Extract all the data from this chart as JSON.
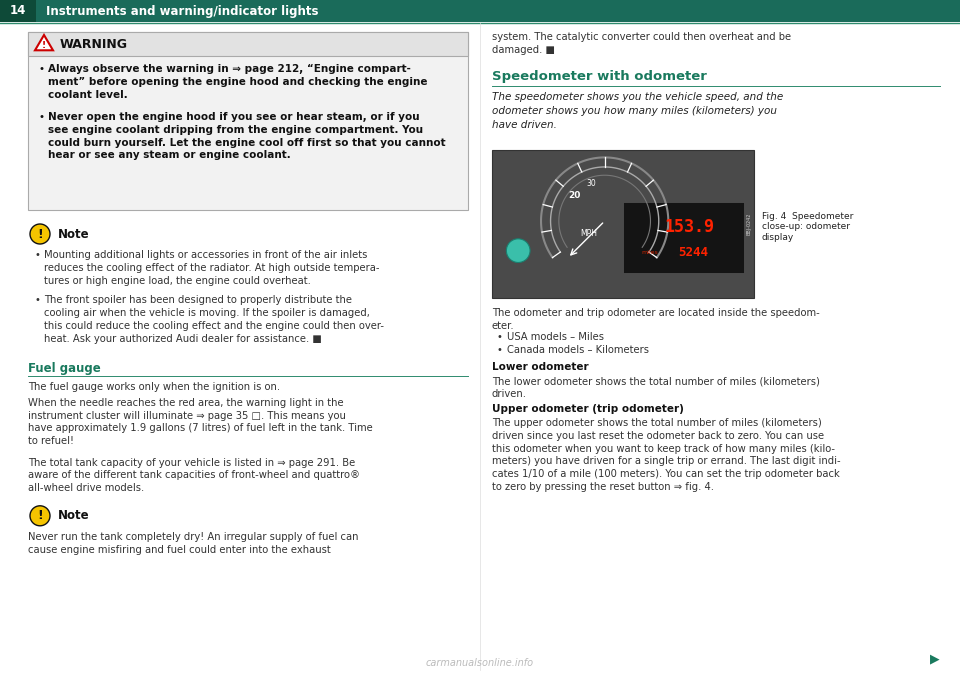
{
  "page_num": "14",
  "header_title": "Instruments and warning/indicator lights",
  "header_bg": "#1a6b5a",
  "header_text_color": "#ffffff",
  "divider_color": "#2e8b6e",
  "bg_color": "#ffffff",
  "teal_color": "#1a7a5e",
  "section_line_color": "#2e8b6e",
  "warning_title": "WARNING",
  "warning_bullets": [
    "Always observe the warning in ⇒ page 212, “Engine compart-\nment” before opening the engine hood and checking the engine\ncoolant level.",
    "Never open the engine hood if you see or hear steam, or if you\nsee engine coolant dripping from the engine compartment. You\ncould burn yourself. Let the engine cool off first so that you cannot\nhear or see any steam or engine coolant."
  ],
  "note1_title": "Note",
  "note1_bullets": [
    "Mounting additional lights or accessories in front of the air inlets\nreduces the cooling effect of the radiator. At high outside tempera-\ntures or high engine load, the engine could overheat.",
    "The front spoiler has been designed to properly distribute the\ncooling air when the vehicle is moving. If the spoiler is damaged,\nthis could reduce the cooling effect and the engine could then over-\nheat. Ask your authorized Audi dealer for assistance. ■"
  ],
  "fuel_gauge_title": "Fuel gauge",
  "fuel_gauge_text1": "The fuel gauge works only when the ignition is on.",
  "fuel_gauge_text2_parts": [
    {
      "text": "When the needle reaches the red area, the warning light in the\ninstrument cluster will illuminate ⇒ ",
      "bold": false
    },
    {
      "text": "page 35",
      "bold": false,
      "italic": true
    },
    {
      "text": " □. This means you\nhave approximately 1.9 gallons (7 litres) of fuel left in the tank. ",
      "bold": false
    },
    {
      "text": "Time\nto refuel!",
      "bold": true
    }
  ],
  "fuel_gauge_text2": "When the needle reaches the red area, the warning light in the\ninstrument cluster will illuminate ⇒ page 35 □. This means you\nhave approximately 1.9 gallons (7 litres) of fuel left in the tank. Time\nto refuel!",
  "fuel_gauge_text3": "The total tank capacity of your vehicle is listed in ⇒ page 291. Be\naware of the different tank capacities of front-wheel and quattro®\nall-wheel drive models.",
  "note2_title": "Note",
  "note2_text": "Never run the tank completely dry! An irregular supply of fuel can\ncause engine misfiring and fuel could enter into the exhaust",
  "right_text1": "system. The catalytic converter could then overheat and be\ndamaged. ■",
  "speedometer_title": "Speedometer with odometer",
  "speedometer_italic": "The speedometer shows you the vehicle speed, and the\nodometer shows you how many miles (kilometers) you\nhave driven.",
  "fig_caption": "Fig. 4  Speedometer\nclose-up: odometer\ndisplay",
  "odo_text": "The odometer and trip odometer are located inside the speedom-\neter.",
  "odo_bullets": [
    "USA models – Miles",
    "Canada models – Kilometers"
  ],
  "lower_odo_title": "Lower odometer",
  "lower_odo_text": "The lower odometer shows the total number of miles (kilometers)\ndriven.",
  "upper_odo_title": "Upper odometer (trip odometer)",
  "upper_odo_text": "The upper odometer shows the total number of miles (kilometers)\ndriven since you last reset the odometer back to zero. You can use\nthis odometer when you want to keep track of how many miles (kilo-\nmeters) you have driven for a single trip or errand. The last digit indi-\ncates 1/10 of a mile (100 meters). You can set the trip odometer back\nto zero by pressing the reset button ⇒ fig. 4.",
  "watermark": "carmanualsonline.info"
}
